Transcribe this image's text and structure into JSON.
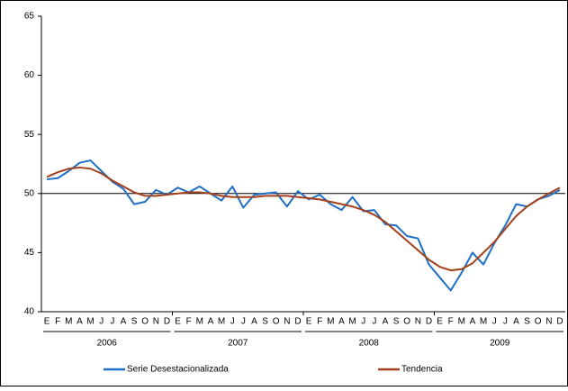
{
  "chart_data": {
    "type": "line",
    "categories": [
      "E",
      "F",
      "M",
      "A",
      "M",
      "J",
      "J",
      "A",
      "S",
      "O",
      "N",
      "D",
      "E",
      "F",
      "M",
      "A",
      "M",
      "J",
      "J",
      "A",
      "S",
      "O",
      "N",
      "D",
      "E",
      "F",
      "M",
      "A",
      "M",
      "J",
      "J",
      "A",
      "S",
      "O",
      "N",
      "D",
      "E",
      "F",
      "M",
      "A",
      "M",
      "J",
      "J",
      "A",
      "S",
      "O",
      "N",
      "D"
    ],
    "year_labels": [
      "2006",
      "2007",
      "2008",
      "2009"
    ],
    "series": [
      {
        "name": "Serie Desestacionalizada",
        "color": "#1f6fc6",
        "values": [
          51.2,
          51.3,
          51.9,
          52.6,
          52.8,
          51.9,
          51.0,
          50.4,
          49.1,
          49.3,
          50.3,
          49.9,
          50.5,
          50.1,
          50.6,
          50.0,
          49.4,
          50.6,
          48.8,
          49.9,
          50.0,
          50.1,
          48.9,
          50.2,
          49.5,
          49.9,
          49.1,
          48.6,
          49.7,
          48.5,
          48.6,
          47.4,
          47.3,
          46.4,
          46.2,
          44.0,
          42.9,
          41.8,
          43.3,
          45.0,
          44.0,
          45.8,
          47.3,
          49.1,
          48.9,
          49.5,
          49.8,
          50.3
        ]
      },
      {
        "name": "Tendencia",
        "color": "#a3401b",
        "values": [
          51.4,
          51.8,
          52.1,
          52.2,
          52.1,
          51.7,
          51.1,
          50.6,
          50.1,
          49.8,
          49.8,
          49.9,
          50.0,
          50.1,
          50.1,
          50.0,
          49.8,
          49.7,
          49.7,
          49.7,
          49.8,
          49.8,
          49.8,
          49.7,
          49.6,
          49.5,
          49.3,
          49.1,
          48.9,
          48.6,
          48.2,
          47.6,
          46.8,
          46.0,
          45.2,
          44.4,
          43.8,
          43.5,
          43.6,
          44.1,
          45.0,
          45.9,
          47.0,
          48.1,
          48.9,
          49.5,
          50.0,
          50.5
        ]
      }
    ],
    "ylim": [
      40,
      65
    ],
    "yticks": [
      40,
      45,
      50,
      55,
      60,
      65
    ],
    "reference_line": 50,
    "grid": false
  }
}
